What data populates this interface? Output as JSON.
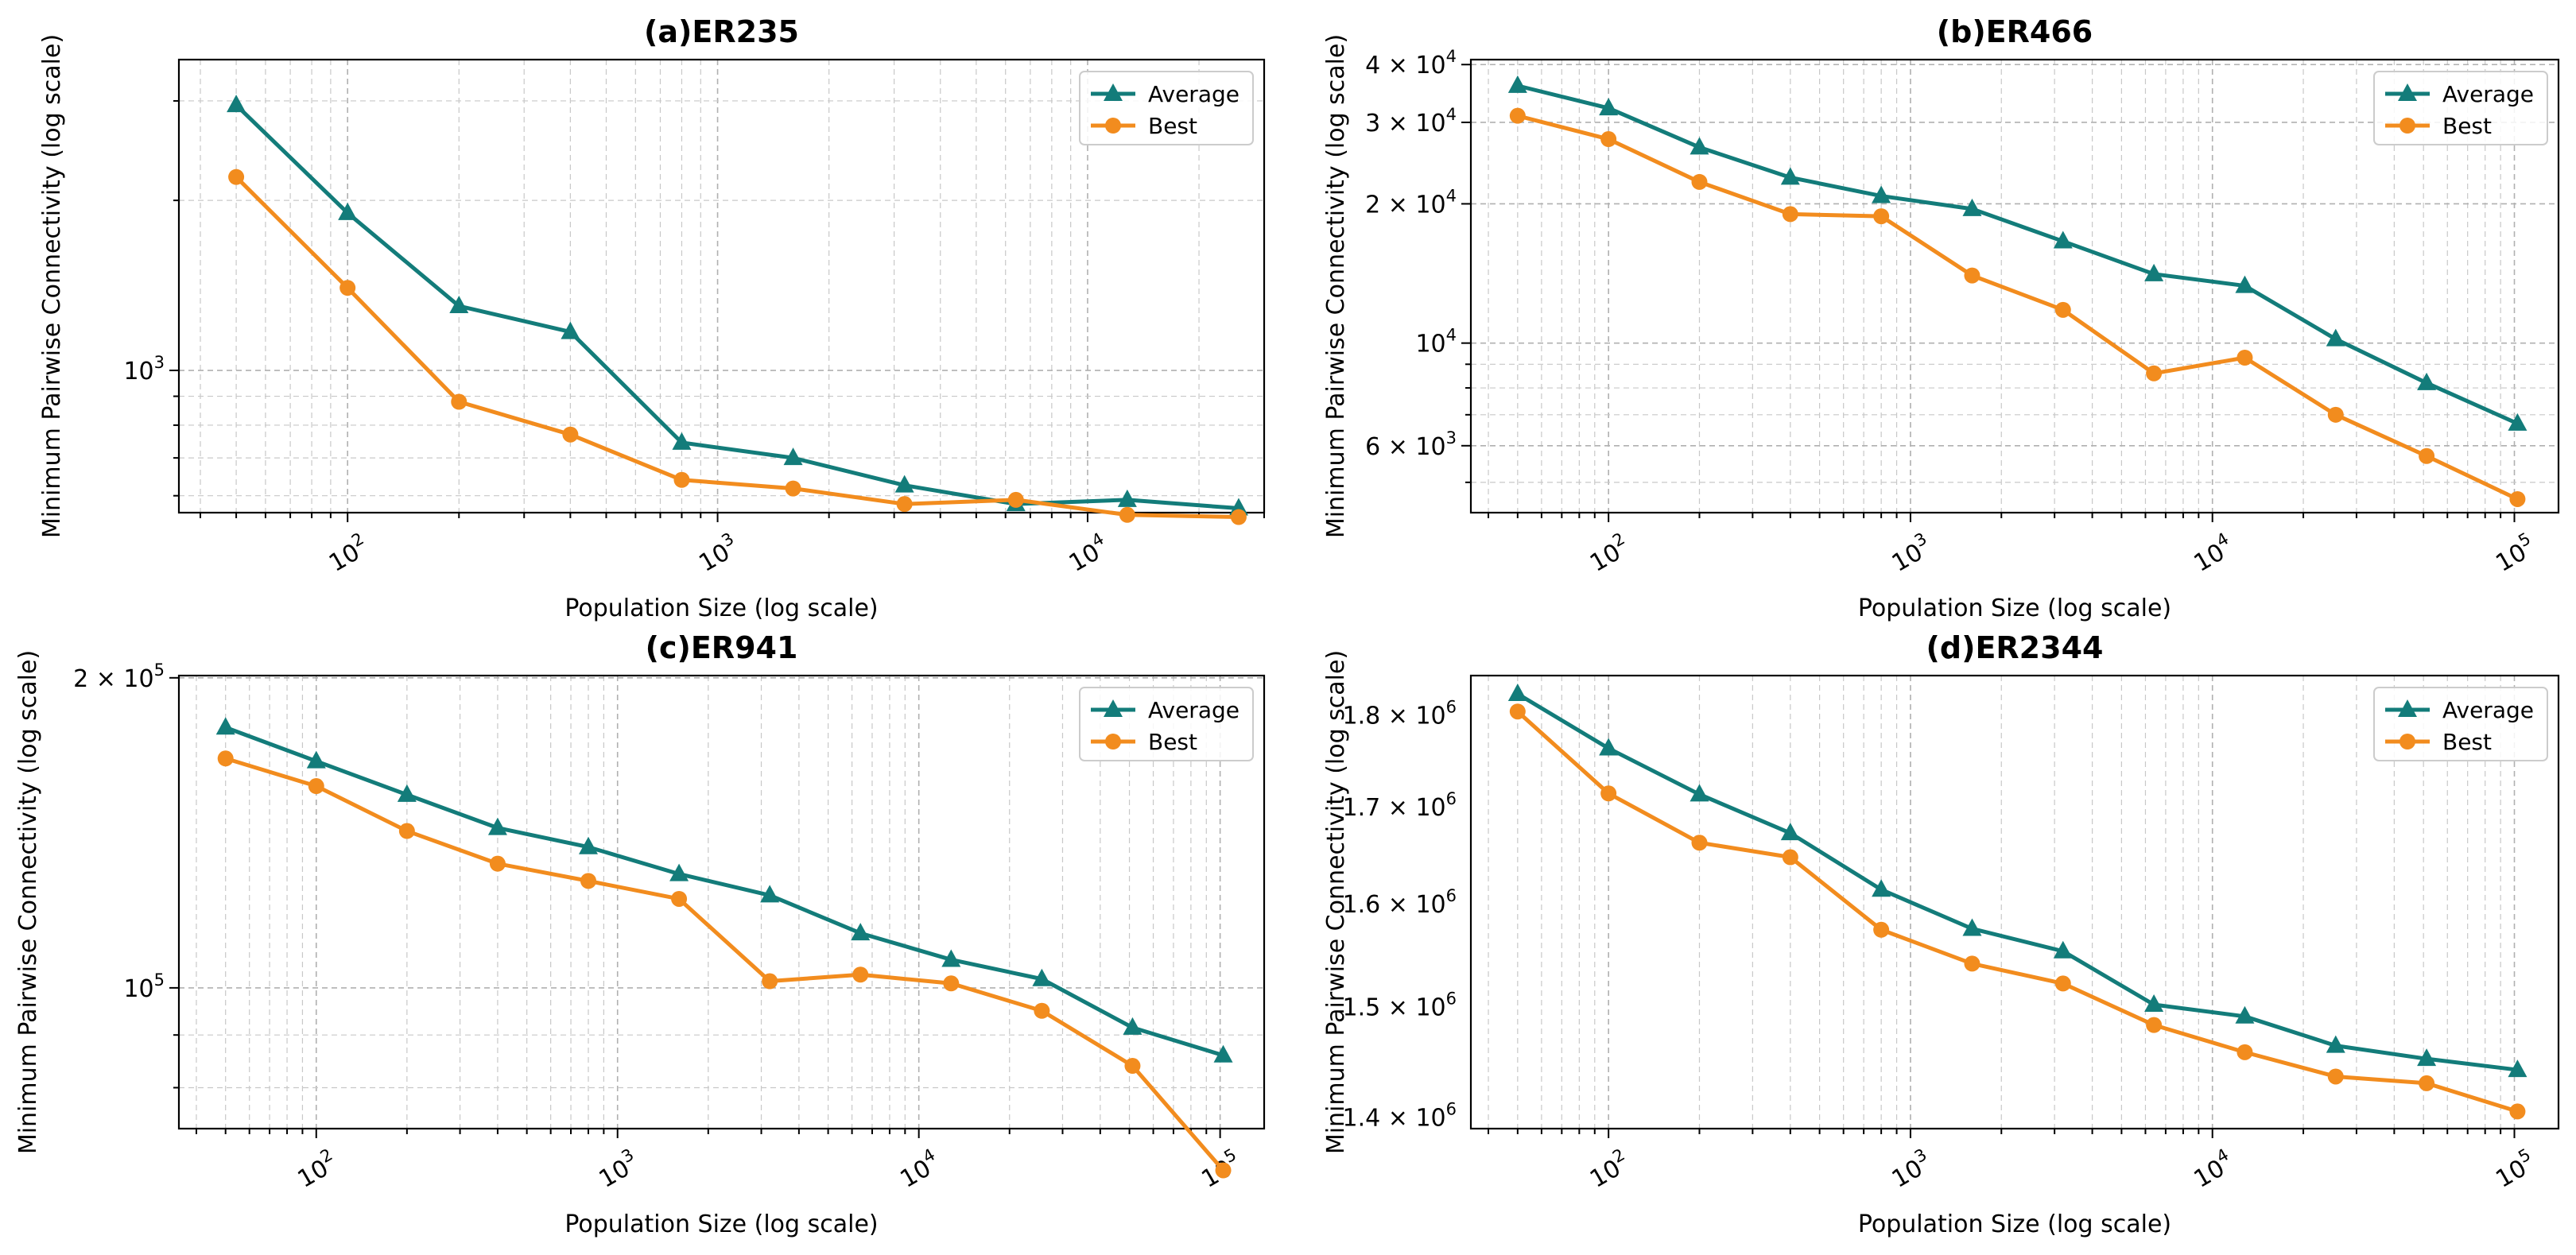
{
  "colors": {
    "average": "#137c7a",
    "best": "#f28c1e"
  },
  "chart_data": [
    {
      "type": "line",
      "title": "(a)ER235",
      "xlabel": "Population Size (log scale)",
      "ylabel": "Minimum Pairwise Connectivity (log scale)",
      "xscale": "log",
      "yscale": "log",
      "xlim": [
        35,
        30000
      ],
      "ylim": [
        560,
        3550
      ],
      "grid": true,
      "legend": "top-right",
      "xticks": [
        {
          "value": 100,
          "base": "10",
          "exp": "2"
        },
        {
          "value": 1000,
          "base": "10",
          "exp": "3"
        },
        {
          "value": 10000,
          "base": "10",
          "exp": "4"
        }
      ],
      "yticks": [
        {
          "value": 1000,
          "base": "10",
          "exp": "3"
        }
      ],
      "x": [
        50,
        100,
        200,
        400,
        800,
        1600,
        3200,
        6400,
        12800,
        25600
      ],
      "series": [
        {
          "name": "Average",
          "marker": "triangle",
          "values": [
            2950,
            1900,
            1300,
            1170,
            745,
            700,
            626,
            580,
            590,
            570
          ]
        },
        {
          "name": "Best",
          "marker": "circle",
          "values": [
            2200,
            1400,
            880,
            770,
            640,
            618,
            580,
            590,
            555,
            550
          ]
        }
      ]
    },
    {
      "type": "line",
      "title": "(b)ER466",
      "xlabel": "Population Size (log scale)",
      "ylabel": "Minimum Pairwise Connectivity (log scale)",
      "xscale": "log",
      "yscale": "log",
      "xlim": [
        35,
        140000
      ],
      "ylim": [
        4300,
        41000
      ],
      "grid": true,
      "legend": "top-right",
      "xticks": [
        {
          "value": 100,
          "base": "10",
          "exp": "2"
        },
        {
          "value": 1000,
          "base": "10",
          "exp": "3"
        },
        {
          "value": 10000,
          "base": "10",
          "exp": "4"
        },
        {
          "value": 100000,
          "base": "10",
          "exp": "5"
        }
      ],
      "yticks": [
        {
          "value": 40000,
          "base": "4 × 10",
          "exp": "4"
        },
        {
          "value": 30000,
          "base": "3 × 10",
          "exp": "4"
        },
        {
          "value": 20000,
          "base": "2 × 10",
          "exp": "4"
        },
        {
          "value": 10000,
          "base": "10",
          "exp": "4"
        },
        {
          "value": 6000,
          "base": "6 × 10",
          "exp": "3"
        }
      ],
      "x": [
        50,
        100,
        200,
        400,
        800,
        1600,
        3200,
        6400,
        12800,
        25600,
        51200,
        102400
      ],
      "series": [
        {
          "name": "Average",
          "marker": "triangle",
          "values": [
            36000,
            32200,
            26500,
            22800,
            20800,
            19500,
            16600,
            14100,
            13300,
            10200,
            8200,
            6700
          ]
        },
        {
          "name": "Best",
          "marker": "circle",
          "values": [
            31000,
            27600,
            22300,
            19000,
            18800,
            14000,
            11800,
            8600,
            9300,
            7000,
            5700,
            4600
          ]
        }
      ]
    },
    {
      "type": "line",
      "title": "(c)ER941",
      "xlabel": "Population Size (log scale)",
      "ylabel": "Minimum Pairwise Connectivity (log scale)",
      "xscale": "log",
      "yscale": "log",
      "xlim": [
        35,
        140000
      ],
      "ylim": [
        73000,
        201000
      ],
      "grid": true,
      "legend": "top-right",
      "xticks": [
        {
          "value": 100,
          "base": "10",
          "exp": "2"
        },
        {
          "value": 1000,
          "base": "10",
          "exp": "3"
        },
        {
          "value": 10000,
          "base": "10",
          "exp": "4"
        },
        {
          "value": 100000,
          "base": "10",
          "exp": "5"
        }
      ],
      "yticks": [
        {
          "value": 200000,
          "base": "2 × 10",
          "exp": "5"
        },
        {
          "value": 100000,
          "base": "10",
          "exp": "5"
        }
      ],
      "x": [
        50,
        100,
        200,
        400,
        800,
        1600,
        3200,
        6400,
        12800,
        25600,
        51200,
        102400
      ],
      "series": [
        {
          "name": "Average",
          "marker": "triangle",
          "values": [
            179000,
            166000,
            154000,
            143000,
            137000,
            129000,
            123000,
            113000,
            106500,
            102000,
            91500,
            86000
          ]
        },
        {
          "name": "Best",
          "marker": "circle",
          "values": [
            167000,
            157000,
            142000,
            132000,
            127000,
            122000,
            101500,
            103000,
            101000,
            95000,
            84000,
            66500
          ]
        }
      ]
    },
    {
      "type": "line",
      "title": "(d)ER2344",
      "xlabel": "Population Size (log scale)",
      "ylabel": "Minimum Pairwise Connectivity (log scale)",
      "xscale": "log",
      "yscale": "log",
      "xlim": [
        35,
        140000
      ],
      "ylim": [
        1390000,
        1845000
      ],
      "grid": true,
      "legend": "top-right",
      "xticks": [
        {
          "value": 100,
          "base": "10",
          "exp": "2"
        },
        {
          "value": 1000,
          "base": "10",
          "exp": "3"
        },
        {
          "value": 10000,
          "base": "10",
          "exp": "4"
        },
        {
          "value": 100000,
          "base": "10",
          "exp": "5"
        }
      ],
      "yticks": [
        {
          "value": 1800000,
          "base": "1.8 × 10",
          "exp": "6"
        },
        {
          "value": 1700000,
          "base": "1.7 × 10",
          "exp": "6"
        },
        {
          "value": 1600000,
          "base": "1.6 × 10",
          "exp": "6"
        },
        {
          "value": 1500000,
          "base": "1.5 × 10",
          "exp": "6"
        },
        {
          "value": 1400000,
          "base": "1.4 × 10",
          "exp": "6"
        }
      ],
      "x": [
        50,
        100,
        200,
        400,
        800,
        1600,
        3200,
        6400,
        12800,
        25600,
        51200,
        102400
      ],
      "series": [
        {
          "name": "Average",
          "marker": "triangle",
          "values": [
            1824000,
            1763000,
            1713000,
            1672000,
            1614000,
            1575000,
            1553000,
            1502000,
            1491000,
            1464000,
            1452000,
            1442000
          ]
        },
        {
          "name": "Best",
          "marker": "circle",
          "values": [
            1804000,
            1714000,
            1662000,
            1647000,
            1574000,
            1541000,
            1522000,
            1483000,
            1458000,
            1436000,
            1430000,
            1405000
          ]
        }
      ]
    }
  ]
}
